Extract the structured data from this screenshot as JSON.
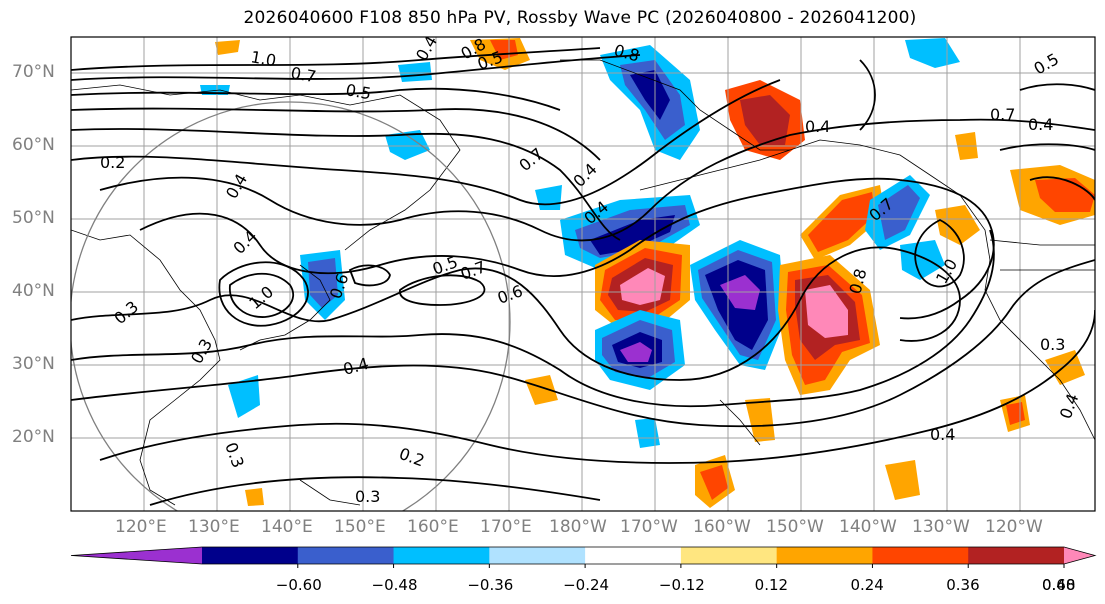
{
  "title": "2026040600 F108 850 hPa PV, Rossby Wave PC (2026040800 - 2026041200)",
  "lat_labels": [
    "70°N",
    "60°N",
    "50°N",
    "40°N",
    "30°N",
    "20°N"
  ],
  "lon_labels": [
    "120°E",
    "130°E",
    "140°E",
    "150°E",
    "160°E",
    "170°E",
    "180°W",
    "170°W",
    "160°W",
    "150°W",
    "140°W",
    "130°W",
    "120°W"
  ],
  "contour_labels": [
    "0.2",
    "0.4",
    "0.4",
    "0.3",
    "0.4",
    "0.7",
    "0.8",
    "1.0",
    "0.7",
    "0.5",
    "1.0",
    "0.4",
    "0.6",
    "0.5",
    "0.7",
    "0.6",
    "0.4",
    "0.7",
    "0.4",
    "0.5",
    "0.4",
    "0.2",
    "0.3",
    "0.3",
    "0.8",
    "0.4",
    "0.8",
    "0.7",
    "1.0",
    "0.5",
    "0.4",
    "0.3",
    "0.4",
    "0.3"
  ],
  "colorbar": {
    "levels": [
      "−0.60",
      "−0.48",
      "−0.36",
      "−0.24",
      "−0.12",
      "0.12",
      "0.24",
      "0.36",
      "0.48",
      "0.60"
    ],
    "colors": [
      "#9b30d0",
      "#00008b",
      "#3a5fcd",
      "#00bfff",
      "#b0e2ff",
      "#ffffff",
      "#ffe680",
      "#ffa500",
      "#ff4500",
      "#b22222",
      "#ff88b8"
    ]
  },
  "map_colors": {
    "land_line": "#000000",
    "grid": "#a0a0a0",
    "circle": "#808080"
  }
}
